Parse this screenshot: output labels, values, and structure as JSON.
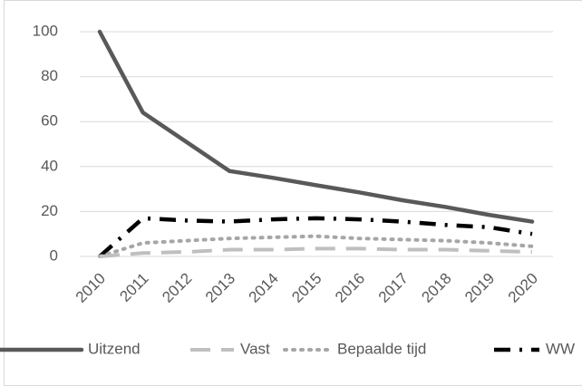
{
  "chart_data": {
    "type": "line",
    "x": [
      "2010",
      "2011",
      "2012",
      "2013",
      "2014",
      "2015",
      "2016",
      "2017",
      "2018",
      "2019",
      "2020"
    ],
    "series": [
      {
        "name": "Uitzend",
        "color": "#595959",
        "dash": "solid",
        "values": [
          100,
          64,
          51,
          38,
          35,
          31.7,
          28.5,
          25,
          22,
          18.5,
          15.5
        ]
      },
      {
        "name": "Vast",
        "color": "#bfbfbf",
        "dash": "dashed",
        "values": [
          0,
          1.5,
          2,
          3,
          3,
          3.5,
          3.5,
          3,
          3,
          2.5,
          2
        ]
      },
      {
        "name": "Bepaalde tijd",
        "color": "#a6a6a6",
        "dash": "dotted",
        "values": [
          0,
          6,
          7,
          8,
          8.5,
          9,
          8,
          7.5,
          7,
          6,
          4.5
        ]
      },
      {
        "name": "WW",
        "color": "#000000",
        "dash": "dashdot",
        "values": [
          0,
          17,
          16,
          15.5,
          16.5,
          17,
          16.5,
          15.5,
          14,
          13,
          10
        ]
      }
    ],
    "ylim": [
      0,
      100
    ],
    "yticks": [
      0,
      20,
      40,
      60,
      80,
      100
    ],
    "grid": true,
    "legend": "bottom"
  }
}
